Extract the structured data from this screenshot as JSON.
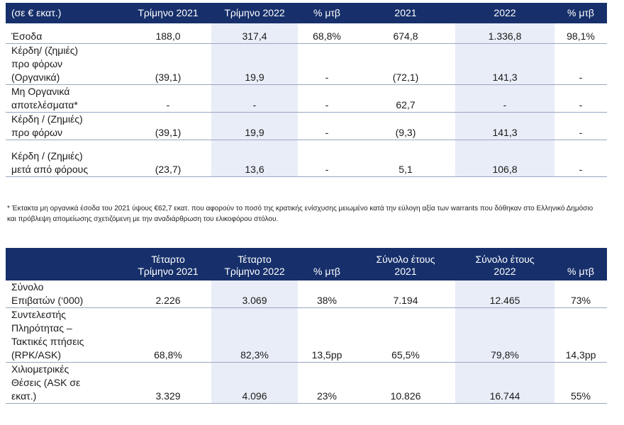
{
  "table1": {
    "headers": [
      "(σε € εκατ.)",
      "Τρίμηνο 2021",
      "Τρίμηνο 2022",
      "% μτβ",
      "2021",
      "2022",
      "% μτβ"
    ],
    "rows": [
      {
        "label": [
          "Έσοδα"
        ],
        "values": [
          "188,0",
          "317,4",
          "68,8%",
          "674,8",
          "1.336,8",
          "98,1%"
        ]
      },
      {
        "label": [
          "Κέρδη/ (ζημιές)",
          "προ φόρων",
          "(Οργανικά)"
        ],
        "values": [
          "(39,1)",
          "19,9",
          "-",
          "(72,1)",
          "141,3",
          "-"
        ]
      },
      {
        "label": [
          "Μη Οργανικά",
          "αποτελέσματα*"
        ],
        "values": [
          "-",
          "-",
          "-",
          "62,7",
          "-",
          "-"
        ]
      },
      {
        "label": [
          "Κέρδη / (Ζημιές)",
          "προ φόρων"
        ],
        "values": [
          "(39,1)",
          "19,9",
          "-",
          "(9,3)",
          "141,3",
          "-"
        ]
      },
      {
        "label": [
          "Κέρδη / (Ζημιές)",
          "μετά από φόρους"
        ],
        "values": [
          "(23,7)",
          "13,6",
          "-",
          "5,1",
          "106,8",
          "-"
        ]
      }
    ]
  },
  "footnote": "* Έκτακτα μη οργανικά έσοδα του 2021 ύψους €62,7 εκατ. που αφορούν το ποσό της κρατικής ενίσχυσης μειωμένο κατά την εύλογη αξία των warrants που δόθηκαν στο Ελληνικό Δημόσιο και πρόβλεψη απομείωσης σχετιζόμενη με την αναδιάρθρωση του ελικοφόρου στόλου.",
  "table2": {
    "headers": [
      [
        ""
      ],
      [
        "Τέταρτο",
        "Τρίμηνο 2021"
      ],
      [
        "Τέταρτο",
        "Τρίμηνο 2022"
      ],
      [
        "% μτβ"
      ],
      [
        "Σύνολο έτους",
        "2021"
      ],
      [
        "Σύνολο έτους",
        "2022"
      ],
      [
        "% μτβ"
      ]
    ],
    "rows": [
      {
        "label": [
          "Σύνολο",
          "Επιβατών (‘000)"
        ],
        "values": [
          "2.226",
          "3.069",
          "38%",
          "7.194",
          "12.465",
          "73%"
        ]
      },
      {
        "label": [
          "Συντελεστής",
          "Πληρότητας –",
          "Τακτικές πτήσεις",
          "(RPK/ASK)"
        ],
        "values": [
          "68,8%",
          "82,3%",
          "13,5pp",
          "65,5%",
          "79,8%",
          "14,3pp"
        ]
      },
      {
        "label": [
          "Χιλιομετρικές",
          "Θέσεις (ASK σε",
          "εκατ.)"
        ],
        "values": [
          "3.329",
          "4.096",
          "23%",
          "10.826",
          "16.744",
          "55%"
        ]
      }
    ]
  }
}
